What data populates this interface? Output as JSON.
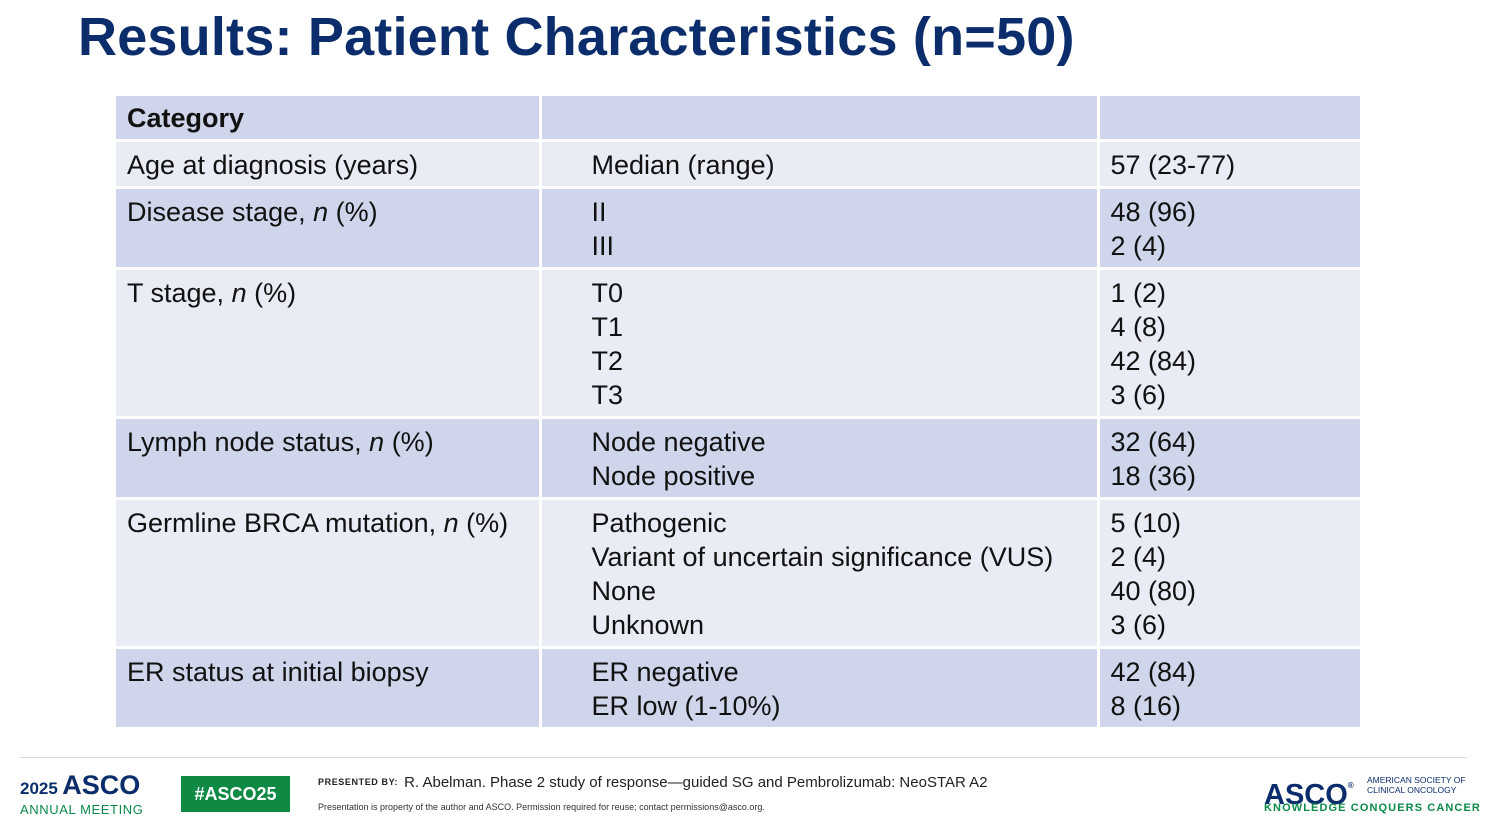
{
  "slide": {
    "title": "Results: Patient Characteristics (n=50)"
  },
  "table": {
    "header": {
      "category": "Category",
      "subcategory": "",
      "value": ""
    },
    "rows": [
      {
        "category": "Age at diagnosis (years)",
        "category_suffix": "",
        "subs": [
          "Median (range)"
        ],
        "values": [
          "57 (23-77)"
        ]
      },
      {
        "category": "Disease stage, ",
        "category_suffix": " (%)",
        "subs": [
          "II",
          "III"
        ],
        "values": [
          "48 (96)",
          "2 (4)"
        ]
      },
      {
        "category": "T stage, ",
        "category_suffix": " (%)",
        "subs": [
          "T0",
          "T1",
          "T2",
          "T3"
        ],
        "values": [
          "1 (2)",
          "4 (8)",
          "42 (84)",
          "3 (6)"
        ]
      },
      {
        "category": "Lymph node status, ",
        "category_suffix": " (%)",
        "subs": [
          "Node negative",
          "Node positive"
        ],
        "values": [
          "32 (64)",
          "18 (36)"
        ]
      },
      {
        "category": "Germline BRCA mutation, ",
        "category_suffix": " (%)",
        "subs": [
          "Pathogenic",
          "Variant of uncertain significance (VUS)",
          "None",
          "Unknown"
        ],
        "values": [
          "5 (10)",
          "2 (4)",
          "40 (80)",
          "3 (6)"
        ]
      },
      {
        "category": "ER status at initial biopsy",
        "category_suffix": "",
        "subs": [
          "ER negative",
          "ER low (1-10%)"
        ],
        "values": [
          "42 (84)",
          "8 (16)"
        ]
      }
    ],
    "n_italic": "n"
  },
  "footer": {
    "meeting_year": "2025",
    "meeting_org": "ASCO",
    "meeting_label": "ANNUAL MEETING",
    "hashtag": "#ASCO25",
    "presented_label": "PRESENTED BY:",
    "presented_text": "R. Abelman. Phase 2 study of response—guided SG and Pembrolizumab: NeoSTAR A2",
    "disclaimer": "Presentation is property of the author and ASCO. Permission required for reuse; contact permissions@asco.org.",
    "asco_mark": "ASCO",
    "asco_reg": "®",
    "asco_society": "AMERICAN SOCIETY OF CLINICAL ONCOLOGY",
    "asco_tagline": "KNOWLEDGE CONQUERS CANCER"
  },
  "colors": {
    "title": "#0b2d6b",
    "row_shade": "#cfd5ea",
    "row_light": "#e9ebf5",
    "brand_green": "#0f8a45"
  }
}
